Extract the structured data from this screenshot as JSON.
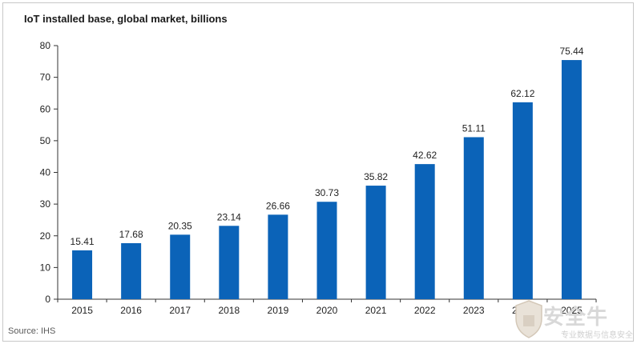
{
  "chart_data": {
    "type": "bar",
    "title": "IoT installed base, global market, billions",
    "categories": [
      "2015",
      "2016",
      "2017",
      "2018",
      "2019",
      "2020",
      "2021",
      "2022",
      "2023",
      "2024",
      "2025"
    ],
    "values": [
      15.41,
      17.68,
      20.35,
      23.14,
      26.66,
      30.73,
      35.82,
      42.62,
      51.11,
      62.12,
      75.44
    ],
    "data_labels": [
      "15.41",
      "17.68",
      "20.35",
      "23.14",
      "26.66",
      "30.73",
      "35.82",
      "42.62",
      "51.11",
      "62.12",
      "75.44"
    ],
    "ylim": [
      0,
      80
    ],
    "yticks": [
      0,
      10,
      20,
      30,
      40,
      50,
      60,
      70,
      80
    ],
    "xlabel": "",
    "ylabel": "",
    "grid": false,
    "bar_color": "#0b63b8"
  },
  "source": "Source: IHS",
  "watermark": {
    "text": "安全牛",
    "subtext": "专业数据与信息安全"
  }
}
